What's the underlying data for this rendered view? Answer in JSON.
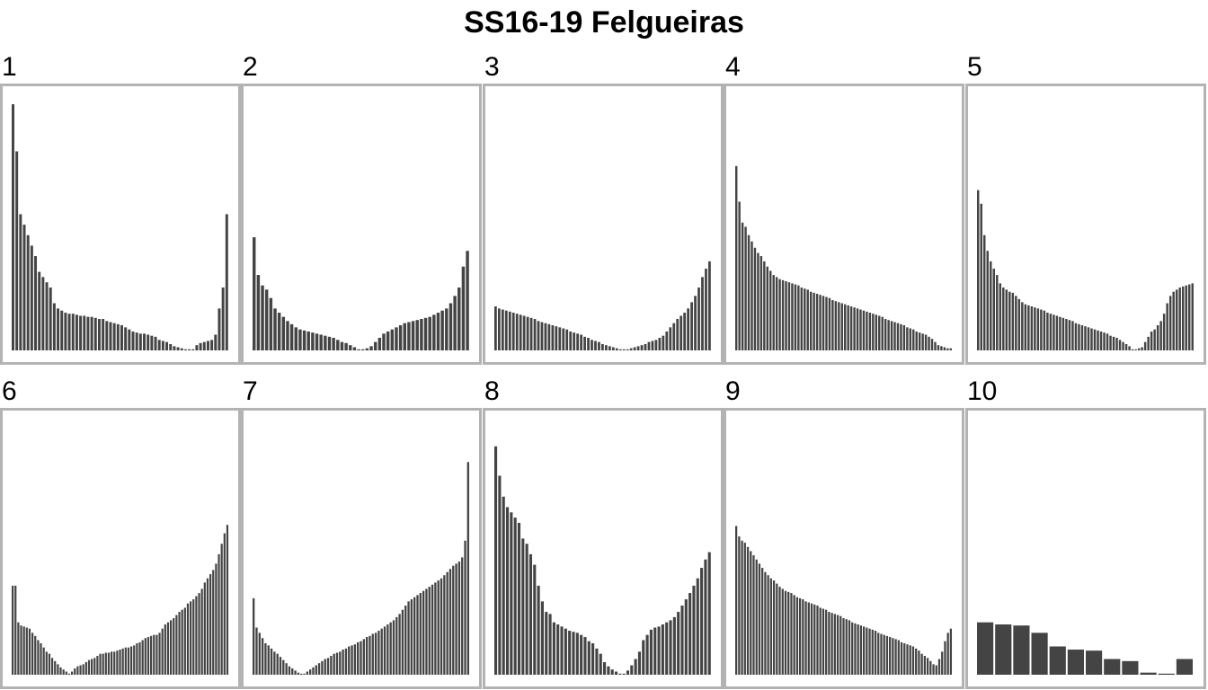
{
  "chart_data": {
    "type": "bar",
    "title": "SS16-19 Felgueiras",
    "bar_color": "#444444",
    "frame_color": "#b3b3b3",
    "panels": [
      {
        "label": "1",
        "values": [
          235,
          190,
          130,
          120,
          110,
          100,
          90,
          75,
          70,
          65,
          60,
          45,
          40,
          38,
          36,
          35,
          35,
          34,
          33,
          33,
          32,
          32,
          31,
          30,
          30,
          28,
          27,
          26,
          25,
          24,
          22,
          20,
          18,
          17,
          16,
          16,
          15,
          14,
          13,
          10,
          9,
          8,
          6,
          4,
          3,
          2,
          1,
          1,
          0,
          5,
          7,
          8,
          9,
          10,
          15,
          40,
          60,
          130
        ]
      },
      {
        "label": "2",
        "values": [
          108,
          72,
          62,
          58,
          50,
          40,
          36,
          32,
          28,
          25,
          22,
          20,
          19,
          18,
          17,
          16,
          15,
          14,
          13,
          12,
          10,
          8,
          7,
          5,
          3,
          1,
          0,
          2,
          4,
          8,
          12,
          16,
          18,
          20,
          22,
          24,
          26,
          27,
          28,
          29,
          30,
          31,
          32,
          34,
          36,
          38,
          40,
          45,
          52,
          60,
          80,
          95
        ]
      },
      {
        "label": "3",
        "values": [
          42,
          40,
          39,
          38,
          37,
          36,
          35,
          34,
          33,
          32,
          31,
          30,
          28,
          27,
          26,
          25,
          24,
          23,
          22,
          21,
          20,
          18,
          17,
          16,
          15,
          13,
          12,
          10,
          9,
          8,
          6,
          5,
          4,
          3,
          2,
          1,
          0,
          1,
          2,
          3,
          4,
          5,
          6,
          8,
          9,
          10,
          12,
          14,
          18,
          22,
          26,
          30,
          33,
          36,
          40,
          46,
          52,
          60,
          70,
          78,
          85
        ]
      },
      {
        "label": "4",
        "values": [
          176,
          142,
          122,
          118,
          110,
          104,
          98,
          93,
          90,
          85,
          80,
          76,
          72,
          70,
          68,
          67,
          66,
          65,
          64,
          63,
          62,
          60,
          59,
          58,
          56,
          55,
          54,
          53,
          52,
          51,
          50,
          48,
          47,
          46,
          45,
          44,
          43,
          42,
          41,
          40,
          39,
          38,
          37,
          36,
          35,
          34,
          33,
          32,
          30,
          29,
          28,
          27,
          26,
          25,
          24,
          22,
          21,
          20,
          18,
          17,
          16,
          15,
          13,
          11,
          8,
          5,
          4,
          3,
          2,
          2
        ]
      },
      {
        "label": "5",
        "values": [
          153,
          140,
          110,
          95,
          85,
          78,
          72,
          64,
          60,
          58,
          56,
          55,
          52,
          49,
          46,
          44,
          43,
          42,
          41,
          40,
          39,
          38,
          36,
          35,
          34,
          33,
          32,
          31,
          30,
          29,
          28,
          26,
          25,
          24,
          23,
          22,
          21,
          20,
          19,
          18,
          17,
          16,
          14,
          13,
          12,
          10,
          8,
          6,
          4,
          1,
          0,
          2,
          3,
          8,
          13,
          18,
          20,
          24,
          28,
          35,
          45,
          52,
          56,
          58,
          60,
          61,
          62,
          63,
          64
        ]
      },
      {
        "label": "6",
        "values": [
          85,
          85,
          50,
          47,
          46,
          45,
          44,
          40,
          37,
          33,
          30,
          26,
          22,
          20,
          16,
          13,
          10,
          7,
          5,
          3,
          0,
          3,
          6,
          8,
          9,
          10,
          12,
          14,
          15,
          16,
          18,
          20,
          20,
          21,
          21,
          22,
          22,
          23,
          24,
          25,
          26,
          26,
          27,
          28,
          30,
          31,
          33,
          35,
          36,
          37,
          38,
          38,
          40,
          44,
          48,
          50,
          52,
          54,
          57,
          60,
          62,
          64,
          68,
          70,
          72,
          75,
          78,
          82,
          88,
          92,
          96,
          100,
          106,
          115,
          125,
          135,
          143
        ]
      },
      {
        "label": "7",
        "values": [
          73,
          45,
          40,
          35,
          30,
          28,
          25,
          22,
          20,
          17,
          14,
          11,
          8,
          6,
          4,
          2,
          1,
          0,
          3,
          5,
          7,
          9,
          11,
          13,
          15,
          16,
          18,
          20,
          21,
          22,
          24,
          25,
          27,
          28,
          29,
          31,
          32,
          34,
          36,
          37,
          39,
          40,
          42,
          44,
          46,
          48,
          50,
          52,
          55,
          58,
          62,
          66,
          70,
          72,
          74,
          76,
          78,
          80,
          82,
          84,
          86,
          88,
          90,
          92,
          95,
          98,
          101,
          104,
          106,
          108,
          112,
          128,
          203
        ]
      },
      {
        "label": "8",
        "values": [
          218,
          190,
          170,
          160,
          155,
          150,
          145,
          130,
          125,
          115,
          105,
          85,
          70,
          60,
          58,
          50,
          48,
          46,
          44,
          42,
          41,
          40,
          38,
          36,
          32,
          30,
          25,
          20,
          12,
          8,
          5,
          3,
          1,
          0,
          4,
          9,
          15,
          22,
          33,
          38,
          43,
          45,
          46,
          48,
          50,
          52,
          55,
          60,
          66,
          72,
          78,
          85,
          92,
          102,
          110,
          117
        ]
      },
      {
        "label": "9",
        "values": [
          142,
          132,
          128,
          126,
          122,
          118,
          114,
          110,
          106,
          102,
          98,
          95,
          92,
          90,
          87,
          84,
          82,
          80,
          79,
          78,
          76,
          74,
          73,
          72,
          70,
          69,
          68,
          67,
          66,
          64,
          63,
          62,
          60,
          59,
          58,
          57,
          56,
          54,
          53,
          52,
          50,
          49,
          48,
          47,
          46,
          45,
          44,
          43,
          42,
          40,
          39,
          38,
          37,
          36,
          35,
          34,
          33,
          31,
          30,
          29,
          28,
          27,
          25,
          23,
          20,
          18,
          16,
          13,
          10,
          9,
          15,
          22,
          32,
          40,
          44
        ]
      },
      {
        "label": "10",
        "values": [
          50,
          48,
          47,
          40,
          27,
          24,
          23,
          15,
          13,
          2,
          1,
          15
        ]
      }
    ]
  }
}
